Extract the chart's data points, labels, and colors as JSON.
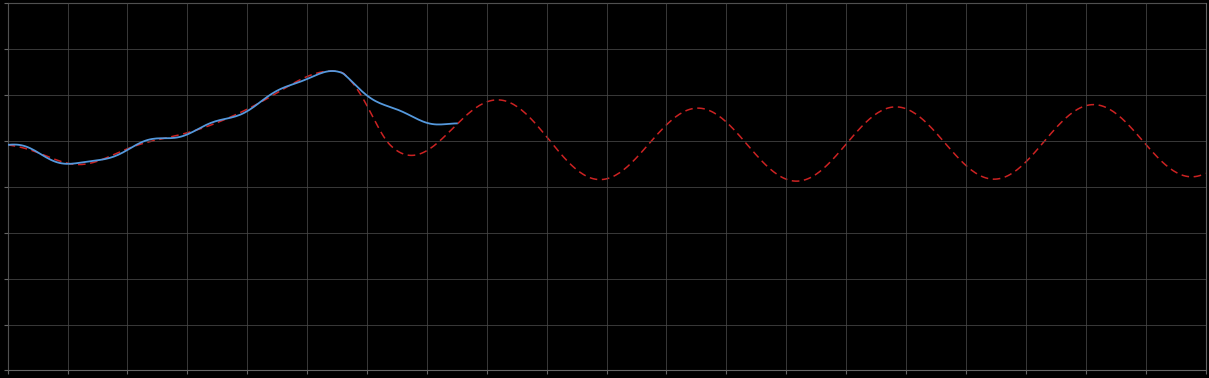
{
  "background_color": "#000000",
  "plot_bg_color": "#000000",
  "grid_color": "#4a4a4a",
  "blue_line_color": "#5599dd",
  "red_line_color": "#cc2222",
  "figure_width": 12.09,
  "figure_height": 3.78,
  "dpi": 100,
  "xlim": [
    0,
    1
  ],
  "ylim": [
    0,
    1
  ],
  "n_xticks": 21,
  "n_yticks": 9
}
